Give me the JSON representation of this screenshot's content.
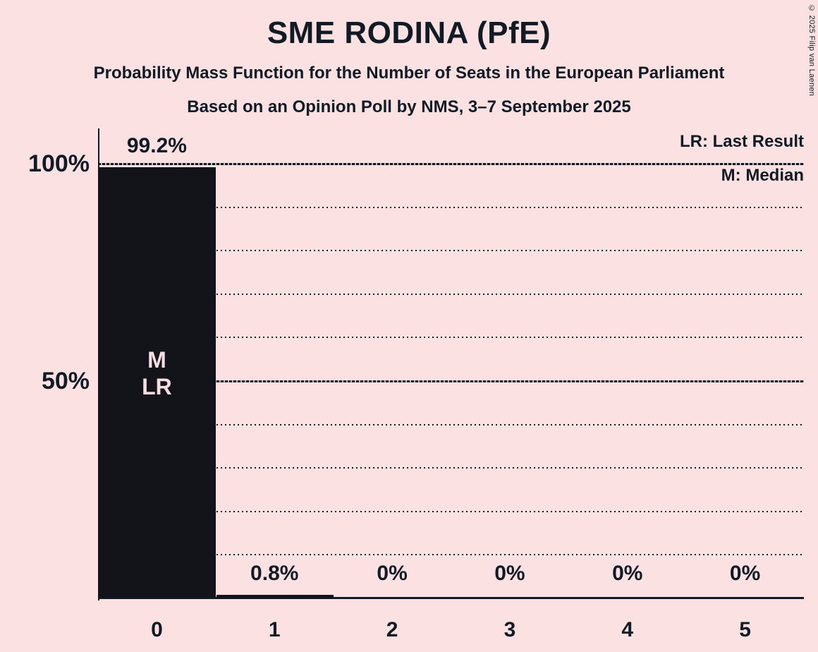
{
  "header": {
    "title": "SME RODINA (PfE)",
    "subtitle1": "Probability Mass Function for the Number of Seats in the European Parliament",
    "subtitle2": "Based on an Opinion Poll by NMS, 3–7 September 2025"
  },
  "legend": {
    "lr": "LR: Last Result",
    "m": "M: Median"
  },
  "copyright": "© 2025 Filip van Laenen",
  "colors": {
    "background": "#fce1e2",
    "text": "#101b26",
    "bar": "#131419",
    "bar_label": "#f8dee0"
  },
  "chart_data": {
    "type": "bar",
    "title": "SME RODINA (PfE)",
    "categories": [
      "0",
      "1",
      "2",
      "3",
      "4",
      "5"
    ],
    "values": [
      99.2,
      0.8,
      0,
      0,
      0,
      0
    ],
    "value_labels": [
      "99.2%",
      "0.8%",
      "0%",
      "0%",
      "0%",
      "0%"
    ],
    "bar_annotations": [
      [
        "M",
        "LR"
      ],
      [],
      [],
      [],
      [],
      []
    ],
    "median_seats": "0",
    "last_result_seats": "0",
    "ylim": [
      0,
      100
    ],
    "y_ticks": [
      {
        "value": 100,
        "label": "100%"
      },
      {
        "value": 50,
        "label": "50%"
      }
    ],
    "major_lines_percent": [
      100,
      50
    ],
    "dotted_gridlines_percent": [
      90,
      80,
      70,
      60,
      40,
      30,
      20,
      10
    ],
    "grid": "horizontal dotted",
    "legend_position": "top-right"
  }
}
